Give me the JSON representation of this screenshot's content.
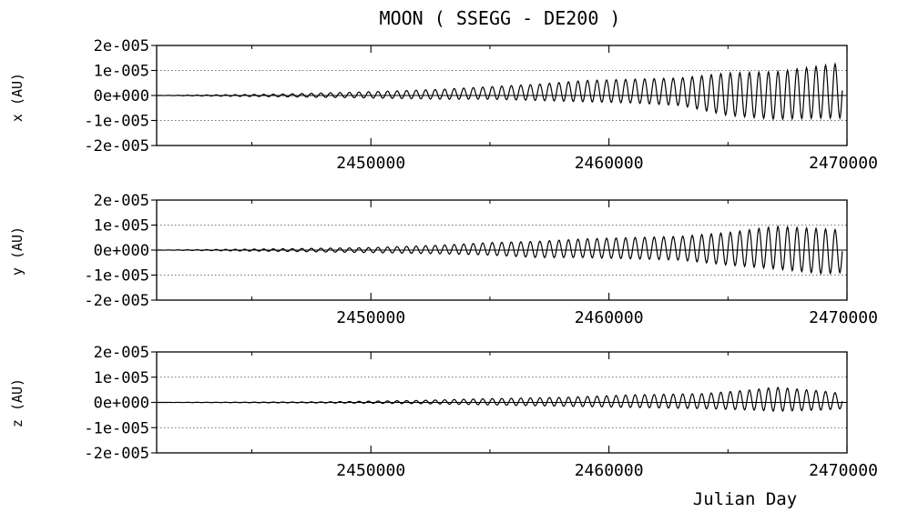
{
  "chart_data": {
    "type": "line",
    "title": "MOON ( SSEGG - DE200 )",
    "xlabel": "Julian Day",
    "xlim": [
      2441000,
      2470000
    ],
    "x_tick_labels": [
      "2450000",
      "2460000",
      "2470000"
    ],
    "x_tick_values": [
      2450000,
      2460000,
      2470000
    ],
    "y_tick_labels": [
      "2e-005",
      "1e-005",
      "0e+000",
      "-1e-005",
      "-2e-005"
    ],
    "y_tick_values": [
      2e-05,
      1e-05,
      0,
      -1e-05,
      -2e-05
    ],
    "ylim": [
      -2e-05,
      2e-05
    ],
    "grid": true,
    "oscillation_period_days": 400,
    "panels": [
      {
        "ylabel": "x (AU)",
        "envelope": [
          {
            "x": 2441000,
            "upper": 0.0,
            "lower": 0.0
          },
          {
            "x": 2446000,
            "upper": 5e-07,
            "lower": -5e-07
          },
          {
            "x": 2450000,
            "upper": 1.5e-06,
            "lower": -1e-06
          },
          {
            "x": 2453000,
            "upper": 2.5e-06,
            "lower": -1.5e-06
          },
          {
            "x": 2455000,
            "upper": 3.5e-06,
            "lower": -1.5e-06
          },
          {
            "x": 2457000,
            "upper": 4.5e-06,
            "lower": -2e-06
          },
          {
            "x": 2459000,
            "upper": 6e-06,
            "lower": -2.5e-06
          },
          {
            "x": 2461000,
            "upper": 6.5e-06,
            "lower": -3e-06
          },
          {
            "x": 2463000,
            "upper": 7e-06,
            "lower": -4e-06
          },
          {
            "x": 2465000,
            "upper": 9e-06,
            "lower": -8e-06
          },
          {
            "x": 2467000,
            "upper": 9.5e-06,
            "lower": -9.5e-06
          },
          {
            "x": 2469000,
            "upper": 1.2e-05,
            "lower": -9e-06
          },
          {
            "x": 2469800,
            "upper": 1.3e-05,
            "lower": -9e-06
          }
        ]
      },
      {
        "ylabel": "y (AU)",
        "envelope": [
          {
            "x": 2441000,
            "upper": 0.0,
            "lower": 0.0
          },
          {
            "x": 2446000,
            "upper": 5e-07,
            "lower": -5e-07
          },
          {
            "x": 2450000,
            "upper": 1e-06,
            "lower": -1e-06
          },
          {
            "x": 2453000,
            "upper": 2e-06,
            "lower": -1.5e-06
          },
          {
            "x": 2455000,
            "upper": 3e-06,
            "lower": -2e-06
          },
          {
            "x": 2457000,
            "upper": 3.5e-06,
            "lower": -3e-06
          },
          {
            "x": 2459000,
            "upper": 4.5e-06,
            "lower": -3e-06
          },
          {
            "x": 2461000,
            "upper": 5e-06,
            "lower": -3.5e-06
          },
          {
            "x": 2463000,
            "upper": 5.5e-06,
            "lower": -4e-06
          },
          {
            "x": 2465000,
            "upper": 7e-06,
            "lower": -6e-06
          },
          {
            "x": 2467000,
            "upper": 9.5e-06,
            "lower": -7.5e-06
          },
          {
            "x": 2469000,
            "upper": 8.5e-06,
            "lower": -9.5e-06
          },
          {
            "x": 2469800,
            "upper": 8e-06,
            "lower": -9e-06
          }
        ]
      },
      {
        "ylabel": "z (AU)",
        "envelope": [
          {
            "x": 2441000,
            "upper": 0.0,
            "lower": 0.0
          },
          {
            "x": 2448000,
            "upper": 2e-07,
            "lower": -2e-07
          },
          {
            "x": 2452000,
            "upper": 8e-07,
            "lower": -5e-07
          },
          {
            "x": 2455000,
            "upper": 1.5e-06,
            "lower": -1e-06
          },
          {
            "x": 2458000,
            "upper": 2e-06,
            "lower": -1.5e-06
          },
          {
            "x": 2461000,
            "upper": 3e-06,
            "lower": -2e-06
          },
          {
            "x": 2464000,
            "upper": 3.5e-06,
            "lower": -2.5e-06
          },
          {
            "x": 2466000,
            "upper": 5e-06,
            "lower": -3e-06
          },
          {
            "x": 2467000,
            "upper": 6e-06,
            "lower": -3.5e-06
          },
          {
            "x": 2469000,
            "upper": 4.5e-06,
            "lower": -3e-06
          },
          {
            "x": 2469800,
            "upper": 3.5e-06,
            "lower": -2.5e-06
          }
        ]
      }
    ]
  }
}
